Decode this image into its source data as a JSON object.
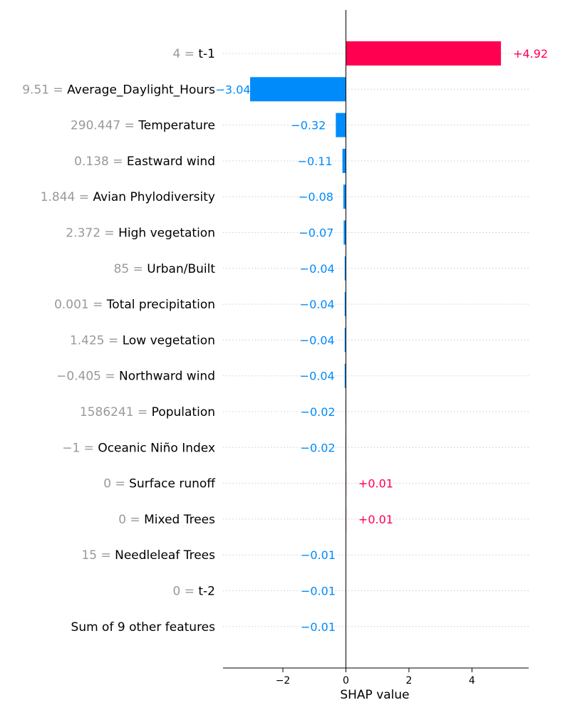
{
  "chart_data": {
    "type": "bar",
    "orientation": "horizontal",
    "chart_style": "shap-waterfall-bars",
    "xlabel": "SHAP value",
    "xlim": [
      -3.9,
      5.8
    ],
    "xticks": [
      -2,
      0,
      2,
      4
    ],
    "xtick_labels": [
      "−2",
      "0",
      "2",
      "4"
    ],
    "grid": "dotted horizontal row lines",
    "legend": "none",
    "colors": {
      "positive": "#ff0051",
      "negative": "#008bfb",
      "feature_value_text": "#999999",
      "feature_name_text": "#000000",
      "axis": "#000000",
      "gridline": "#cccccc"
    },
    "features": [
      {
        "value_label": "4 = ",
        "name": "t-1",
        "shap": 4.92,
        "label": "+4.92"
      },
      {
        "value_label": "9.51 = ",
        "name": "Average_Daylight_Hours",
        "shap": -3.04,
        "label": "−3.04"
      },
      {
        "value_label": "290.447 = ",
        "name": "Temperature",
        "shap": -0.32,
        "label": "−0.32"
      },
      {
        "value_label": "0.138 = ",
        "name": "Eastward wind",
        "shap": -0.11,
        "label": "−0.11"
      },
      {
        "value_label": "1.844 = ",
        "name": "Avian Phylodiversity",
        "shap": -0.08,
        "label": "−0.08"
      },
      {
        "value_label": "2.372 = ",
        "name": "High vegetation",
        "shap": -0.07,
        "label": "−0.07"
      },
      {
        "value_label": "85 = ",
        "name": "Urban/Built",
        "shap": -0.04,
        "label": "−0.04"
      },
      {
        "value_label": "0.001 = ",
        "name": "Total precipitation",
        "shap": -0.04,
        "label": "−0.04"
      },
      {
        "value_label": "1.425 = ",
        "name": "Low vegetation",
        "shap": -0.04,
        "label": "−0.04"
      },
      {
        "value_label": "−0.405 = ",
        "name": "Northward wind",
        "shap": -0.04,
        "label": "−0.04"
      },
      {
        "value_label": "1586241 = ",
        "name": "Population",
        "shap": -0.02,
        "label": "−0.02"
      },
      {
        "value_label": "−1 = ",
        "name": "Oceanic Niño Index",
        "shap": -0.02,
        "label": "−0.02"
      },
      {
        "value_label": "0 = ",
        "name": "Surface runoff",
        "shap": 0.01,
        "label": "+0.01"
      },
      {
        "value_label": "0 = ",
        "name": "Mixed Trees",
        "shap": 0.01,
        "label": "+0.01"
      },
      {
        "value_label": "15 = ",
        "name": "Needleleaf Trees",
        "shap": -0.01,
        "label": "−0.01"
      },
      {
        "value_label": "0 = ",
        "name": "t-2",
        "shap": -0.01,
        "label": "−0.01"
      },
      {
        "value_label": "",
        "name": "Sum of 9 other features",
        "shap": -0.01,
        "label": "−0.01"
      }
    ]
  }
}
